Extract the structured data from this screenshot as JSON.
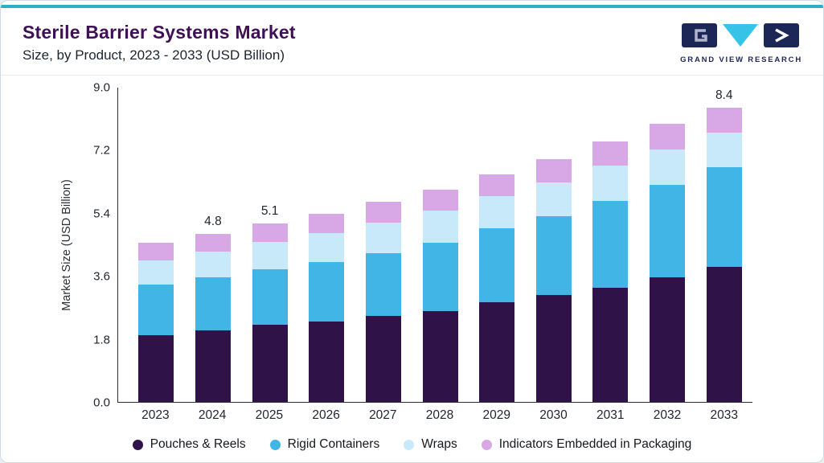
{
  "header": {
    "title": "Sterile Barrier Systems Market",
    "subtitle": "Size, by Product, 2023 - 2033 (USD Billion)",
    "logo_text": "GRAND VIEW RESEARCH"
  },
  "chart_data": {
    "type": "bar",
    "stacked": true,
    "title": "Sterile Barrier Systems Market Size, by Product, 2023 - 2033 (USD Billion)",
    "xlabel": "",
    "ylabel": "Market Size (USD Billion)",
    "ylim": [
      0,
      9.0
    ],
    "yticks": [
      0.0,
      1.8,
      3.6,
      5.4,
      7.2,
      9.0
    ],
    "grid": false,
    "legend_position": "bottom",
    "categories": [
      "2023",
      "2024",
      "2025",
      "2026",
      "2027",
      "2028",
      "2029",
      "2030",
      "2031",
      "2032",
      "2033"
    ],
    "series": [
      {
        "name": "Pouches & Reels",
        "color": "#2e1248",
        "values": [
          1.9,
          2.05,
          2.2,
          2.3,
          2.45,
          2.6,
          2.85,
          3.05,
          3.25,
          3.55,
          3.85
        ]
      },
      {
        "name": "Rigid Containers",
        "color": "#41b6e6",
        "values": [
          1.45,
          1.5,
          1.6,
          1.7,
          1.8,
          1.95,
          2.1,
          2.25,
          2.5,
          2.65,
          2.85
        ]
      },
      {
        "name": "Wraps",
        "color": "#c8e9f9",
        "values": [
          0.7,
          0.75,
          0.78,
          0.83,
          0.88,
          0.92,
          0.93,
          0.98,
          1.0,
          1.02,
          1.0
        ]
      },
      {
        "name": "Indicators Embedded in Packaging",
        "color": "#d8a8e6",
        "values": [
          0.5,
          0.5,
          0.52,
          0.55,
          0.58,
          0.6,
          0.62,
          0.65,
          0.68,
          0.72,
          0.7
        ]
      }
    ],
    "point_labels": [
      {
        "category": "2024",
        "text": "4.8"
      },
      {
        "category": "2025",
        "text": "5.1"
      },
      {
        "category": "2033",
        "text": "8.4"
      }
    ],
    "totals": [
      4.55,
      4.8,
      5.1,
      5.38,
      5.71,
      6.07,
      6.5,
      6.93,
      7.43,
      7.94,
      8.4
    ]
  },
  "colors": {
    "accent_top": "#2bb0c4",
    "title": "#3f1056",
    "logo_navy": "#1d2757",
    "logo_cyan": "#35c4e8",
    "axis": "#2a2f3a"
  }
}
